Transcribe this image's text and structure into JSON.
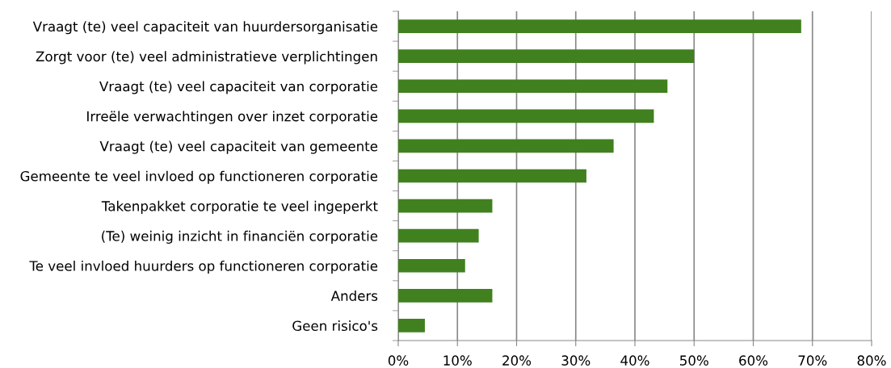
{
  "chart_data": {
    "type": "bar",
    "orientation": "horizontal",
    "categories": [
      "Vraagt (te) veel capaciteit van huurdersorganisatie",
      "Zorgt voor (te) veel administratieve verplichtingen",
      "Vraagt (te) veel capaciteit van corporatie",
      "Irreële verwachtingen over inzet corporatie",
      "Vraagt (te) veel capaciteit van gemeente",
      "Gemeente te veel invloed op functioneren corporatie",
      "Takenpakket corporatie te veel ingeperkt",
      "(Te) weinig inzicht in financiën corporatie",
      "Te veel invloed huurders op functioneren corporatie",
      "Anders",
      "Geen risico's"
    ],
    "values": [
      68.1,
      50.0,
      45.5,
      43.2,
      36.4,
      31.8,
      15.9,
      13.6,
      11.3,
      15.9,
      4.5
    ],
    "color": "#41801f",
    "xlim": [
      0,
      80
    ],
    "xticks": [
      {
        "value": 0,
        "label": "0%"
      },
      {
        "value": 10,
        "label": "10%"
      },
      {
        "value": 20,
        "label": "20%"
      },
      {
        "value": 30,
        "label": "30%"
      },
      {
        "value": 40,
        "label": "40%"
      },
      {
        "value": 50,
        "label": "50%"
      },
      {
        "value": 60,
        "label": "60%"
      },
      {
        "value": 70,
        "label": "70%"
      },
      {
        "value": 80,
        "label": "80%"
      }
    ],
    "grid": "x",
    "legend": false
  }
}
